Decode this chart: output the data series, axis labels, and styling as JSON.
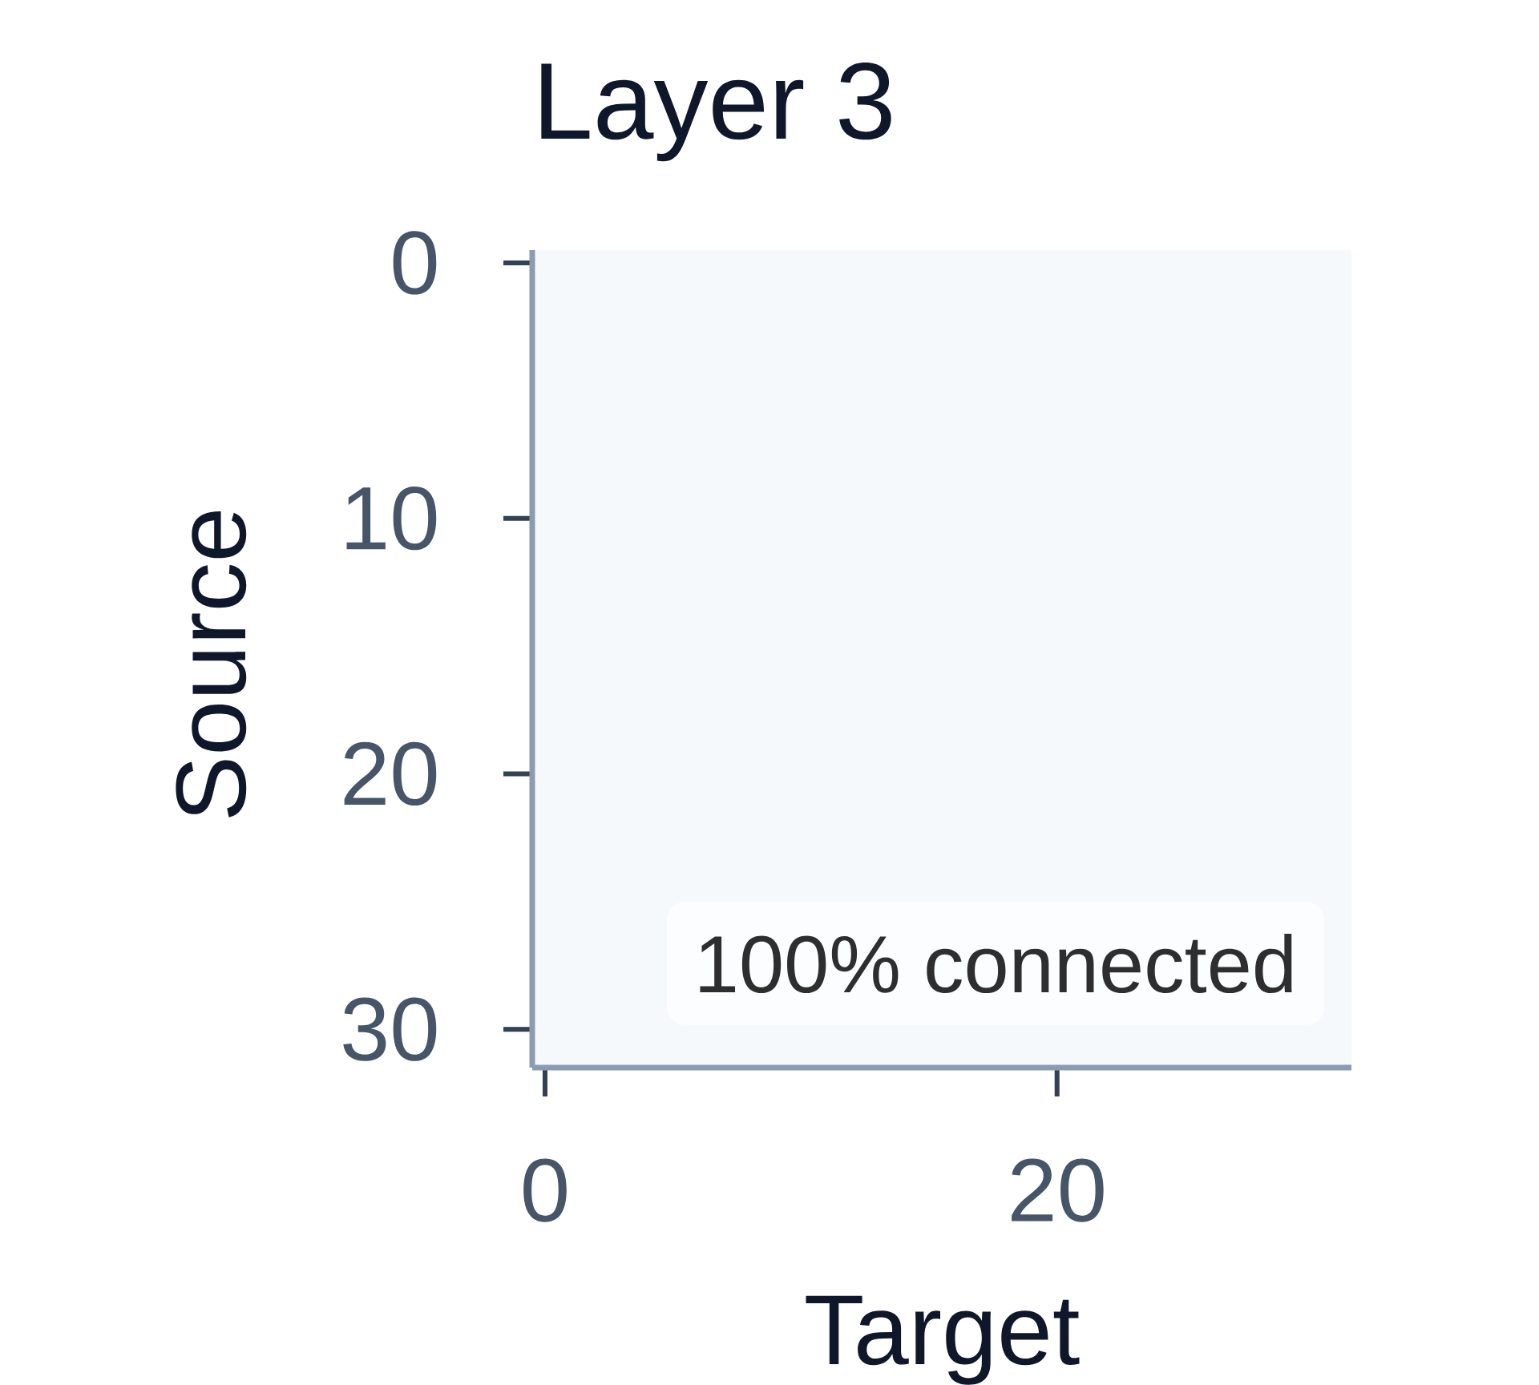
{
  "chart_data": {
    "type": "heatmap",
    "title": "Layer 3",
    "xlabel": "Target",
    "ylabel": "Source",
    "xlim": [
      -0.5,
      31.5
    ],
    "ylim": [
      31.5,
      -0.5
    ],
    "xticks": [
      0,
      20
    ],
    "yticks": [
      0,
      10,
      20,
      30
    ],
    "color": "#f5f9fc",
    "annotations": [
      "100% connected"
    ]
  }
}
